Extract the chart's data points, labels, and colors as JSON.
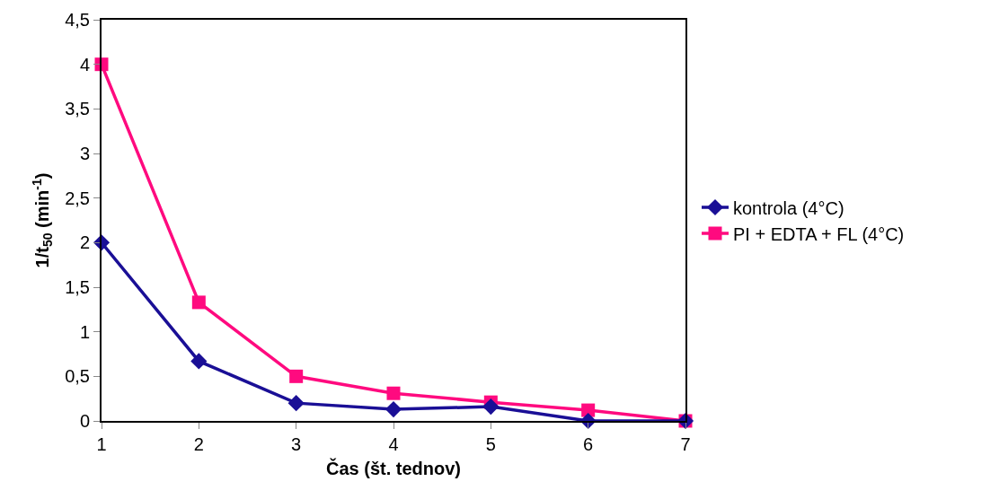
{
  "chart_data": {
    "type": "line",
    "xlabel": "Čas (št. tednov)",
    "ylabel": "1/t$_{50}$ (min$^{-1}$)",
    "x": [
      1,
      2,
      3,
      4,
      5,
      6,
      7
    ],
    "series": [
      {
        "name": "kontrola (4°C)",
        "color": "#1a0f96",
        "marker": "diamond",
        "values": [
          2,
          0.67,
          0.2,
          0.13,
          0.16,
          0,
          0
        ]
      },
      {
        "name": "PI + EDTA + FL (4°C)",
        "color": "#ff0a7f",
        "marker": "square",
        "values": [
          4,
          1.33,
          0.5,
          0.31,
          0.21,
          0.12,
          0
        ]
      }
    ],
    "xlim": [
      1,
      7
    ],
    "xticks": [
      1,
      2,
      3,
      4,
      5,
      6,
      7
    ],
    "ylim": [
      0,
      4.5
    ],
    "yticks": [
      0,
      {
        "value": 0.5,
        "label": "0,5"
      },
      1,
      {
        "value": 1.5,
        "label": "1,5"
      },
      2,
      {
        "value": 2.5,
        "label": "2,5"
      },
      3,
      {
        "value": 3.5,
        "label": "3,5"
      },
      4,
      {
        "value": 4.5,
        "label": "4,5"
      }
    ],
    "grid": false,
    "legend": "right",
    "line_style": "solid"
  }
}
